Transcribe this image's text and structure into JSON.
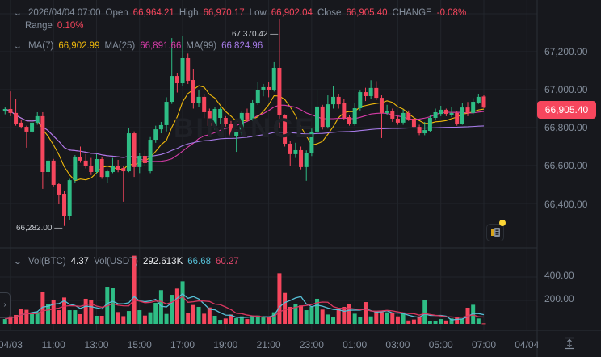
{
  "header": {
    "datetime": "2026/04/04 07:00",
    "open_label": "Open",
    "open": "66,964.21",
    "high_label": "High",
    "high": "66,970.17",
    "low_label": "Low",
    "low": "66,902.04",
    "close_label": "Close",
    "close": "66,905.40",
    "change_label": "CHANGE",
    "change": "-0.08%",
    "range_label": "Range",
    "range": "0.10%"
  },
  "ma_legend": {
    "ma7_label": "MA(7)",
    "ma7": "66,902.99",
    "ma25_label": "MA(25)",
    "ma25": "66,891.66",
    "ma99_label": "MA(99)",
    "ma99": "66,824.96"
  },
  "volume_legend": {
    "vol_btc_label": "Vol(BTC)",
    "vol_btc": "4.37",
    "vol_usdt_label": "Vol(USDT)",
    "vol_usdt": "292.613K",
    "vol_ma1": "66.68",
    "vol_ma2": "60.27"
  },
  "markers": {
    "high": "67,370.42",
    "low": "66,282.00"
  },
  "current_price": "66,905.40",
  "watermark": "BINANCE",
  "colors": {
    "up": "#2ebd85",
    "down": "#f6465d",
    "ma7": "#f0b90b",
    "ma25": "#d63ca8",
    "ma99": "#a77be8",
    "vol_ma1": "#56bfd6",
    "vol_ma2": "#d9365f",
    "background": "#17181d"
  },
  "icons": {
    "collapse": "chevron-down-icon",
    "expand": "chevron-right-icon",
    "news": "news-icon",
    "autoscale": "autoscale-icon"
  },
  "chart_data": {
    "type": "candlestick",
    "price_ticks": [
      "67,200.00",
      "67,000.00",
      "66,800.00",
      "66,600.00",
      "66,400.00"
    ],
    "volume_ticks": [
      "400.00",
      "200.00"
    ],
    "x_ticks": [
      "04/03",
      "11:00",
      "13:00",
      "15:00",
      "17:00",
      "19:00",
      "21:00",
      "23:00",
      "01:00",
      "03:00",
      "05:00",
      "07:00",
      "04/04"
    ],
    "ylim": [
      66200,
      67400
    ],
    "volume_ylim": [
      0,
      600
    ],
    "grid": true,
    "columns": [
      "time",
      "open",
      "high",
      "low",
      "close",
      "volume"
    ],
    "candles": [
      [
        "08:45",
        66885,
        66910,
        66870,
        66898,
        41
      ],
      [
        "09:00",
        66898,
        66991,
        66860,
        66877,
        64
      ],
      [
        "09:15",
        66877,
        66953,
        66810,
        66821,
        76
      ],
      [
        "09:30",
        66826,
        66840,
        66795,
        66804,
        131
      ],
      [
        "09:45",
        66804,
        66810,
        66694,
        66779,
        120
      ],
      [
        "10:00",
        66779,
        66835,
        66770,
        66826,
        92
      ],
      [
        "10:15",
        66826,
        66881,
        66815,
        66860,
        101
      ],
      [
        "10:30",
        66860,
        66881,
        66477,
        66566,
        271
      ],
      [
        "10:45",
        66566,
        66640,
        66540,
        66626,
        168
      ],
      [
        "11:00",
        66626,
        66635,
        66490,
        66498,
        207
      ],
      [
        "11:15",
        66502,
        66510,
        66400,
        66447,
        117
      ],
      [
        "11:30",
        66451,
        66465,
        66282,
        66336,
        225
      ],
      [
        "11:45",
        66336,
        66530,
        66315,
        66523,
        117
      ],
      [
        "12:00",
        66523,
        66655,
        66510,
        66647,
        117
      ],
      [
        "12:15",
        66647,
        66700,
        66615,
        66626,
        83
      ],
      [
        "12:30",
        66626,
        66660,
        66585,
        66596,
        214
      ],
      [
        "12:45",
        66600,
        66640,
        66550,
        66566,
        202
      ],
      [
        "13:00",
        66566,
        66660,
        66555,
        66634,
        69
      ],
      [
        "13:15",
        66634,
        66645,
        66530,
        66540,
        69
      ],
      [
        "13:30",
        66540,
        66580,
        66510,
        66570,
        317
      ],
      [
        "13:45",
        66566,
        66640,
        66560,
        66596,
        306
      ],
      [
        "14:00",
        66596,
        66630,
        66565,
        66575,
        101
      ],
      [
        "14:15",
        66587,
        66600,
        66409,
        66570,
        66
      ],
      [
        "14:30",
        66570,
        66800,
        66565,
        66770,
        110
      ],
      [
        "14:45",
        66770,
        66780,
        66540,
        66592,
        582
      ],
      [
        "15:00",
        66592,
        66665,
        66560,
        66651,
        117
      ],
      [
        "15:15",
        66651,
        66680,
        66600,
        66613,
        71
      ],
      [
        "15:30",
        66570,
        66750,
        66560,
        66736,
        99
      ],
      [
        "15:45",
        66736,
        66810,
        66720,
        66791,
        179
      ],
      [
        "16:00",
        66791,
        66830,
        66770,
        66813,
        288
      ],
      [
        "16:15",
        66813,
        66960,
        66780,
        66936,
        85
      ],
      [
        "16:30",
        66936,
        67272,
        66925,
        67072,
        248
      ],
      [
        "16:45",
        67072,
        67085,
        66985,
        67034,
        301
      ],
      [
        "17:00",
        67034,
        67281,
        67020,
        67166,
        363
      ],
      [
        "17:15",
        67166,
        67190,
        67030,
        67047,
        92
      ],
      [
        "17:30",
        67051,
        67110,
        66900,
        66928,
        161
      ],
      [
        "17:45",
        66928,
        67000,
        66910,
        66962,
        145
      ],
      [
        "18:00",
        66962,
        66975,
        66850,
        66881,
        87
      ],
      [
        "18:15",
        66885,
        66900,
        66780,
        66809,
        140
      ],
      [
        "18:30",
        66809,
        66910,
        66790,
        66898,
        69
      ],
      [
        "18:45",
        66851,
        66905,
        66820,
        66898,
        34
      ],
      [
        "19:00",
        66851,
        66860,
        66805,
        66817,
        46
      ],
      [
        "19:15",
        66821,
        66835,
        66750,
        66757,
        80
      ],
      [
        "19:30",
        66757,
        66790,
        66672,
        66779,
        48
      ],
      [
        "19:45",
        66774,
        66885,
        66760,
        66877,
        64
      ],
      [
        "20:00",
        66877,
        66900,
        66830,
        66843,
        41
      ],
      [
        "20:15",
        66843,
        66945,
        66835,
        66932,
        71
      ],
      [
        "20:30",
        66932,
        67040,
        66920,
        66996,
        71
      ],
      [
        "20:45",
        66996,
        67030,
        66965,
        67013,
        58
      ],
      [
        "21:00",
        67013,
        67040,
        66960,
        67000,
        58
      ],
      [
        "21:15",
        67000,
        67145,
        66990,
        67115,
        99
      ],
      [
        "21:30",
        67115,
        67370.42,
        66800,
        66864,
        432
      ],
      [
        "21:45",
        66864,
        66870,
        66700,
        66715,
        264
      ],
      [
        "22:00",
        66715,
        66730,
        66600,
        66660,
        145
      ],
      [
        "22:15",
        66660,
        66720,
        66640,
        66681,
        168
      ],
      [
        "22:30",
        66681,
        66700,
        66580,
        66592,
        157
      ],
      [
        "22:45",
        66592,
        66680,
        66520,
        66664,
        117
      ],
      [
        "23:00",
        66664,
        66795,
        66650,
        66779,
        145
      ],
      [
        "23:15",
        66779,
        66996,
        66770,
        66911,
        214
      ],
      [
        "23:30",
        66911,
        66920,
        66790,
        66804,
        122
      ],
      [
        "23:45",
        66804,
        66970,
        66795,
        66923,
        80
      ],
      [
        "00:00",
        66923,
        67020,
        66900,
        66962,
        58
      ],
      [
        "00:15",
        66962,
        66975,
        66900,
        66923,
        131
      ],
      [
        "00:30",
        66928,
        66950,
        66840,
        66851,
        145
      ],
      [
        "00:45",
        66855,
        66865,
        66810,
        66821,
        168
      ],
      [
        "01:00",
        66821,
        66930,
        66810,
        66902,
        87
      ],
      [
        "01:15",
        66902,
        66995,
        66890,
        66987,
        58
      ],
      [
        "01:30",
        66987,
        67010,
        66940,
        66966,
        186
      ],
      [
        "01:45",
        66966,
        67050,
        66950,
        67009,
        64
      ],
      [
        "02:00",
        67009,
        67045,
        66945,
        66957,
        110
      ],
      [
        "02:15",
        66957,
        66970,
        66745,
        66877,
        101
      ],
      [
        "02:30",
        66877,
        66920,
        66865,
        66889,
        99
      ],
      [
        "02:45",
        66889,
        66900,
        66830,
        66847,
        92
      ],
      [
        "03:00",
        66847,
        66860,
        66815,
        66826,
        64
      ],
      [
        "03:15",
        66826,
        66895,
        66815,
        66877,
        87
      ],
      [
        "03:30",
        66877,
        66890,
        66835,
        66843,
        29
      ],
      [
        "03:45",
        66847,
        66860,
        66795,
        66804,
        37
      ],
      [
        "04:00",
        66804,
        66815,
        66760,
        66770,
        64
      ],
      [
        "04:15",
        66770,
        66830,
        66760,
        66787,
        207
      ],
      [
        "04:30",
        66783,
        66865,
        66775,
        66851,
        25
      ],
      [
        "04:45",
        66851,
        66900,
        66840,
        66881,
        25
      ],
      [
        "05:00",
        66872,
        66915,
        66860,
        66894,
        41
      ],
      [
        "05:15",
        66894,
        66900,
        66860,
        66872,
        29
      ],
      [
        "05:30",
        66864,
        66910,
        66855,
        66877,
        46
      ],
      [
        "05:45",
        66877,
        66885,
        66810,
        66821,
        53
      ],
      [
        "06:00",
        66821,
        66930,
        66815,
        66906,
        41
      ],
      [
        "06:15",
        66906,
        66935,
        66860,
        66877,
        138
      ],
      [
        "06:30",
        66877,
        66955,
        66870,
        66936,
        163
      ],
      [
        "06:45",
        66932,
        66975,
        66925,
        66962,
        46
      ],
      [
        "07:00",
        66964.21,
        66970.17,
        66902.04,
        66905.4,
        4.37
      ]
    ]
  }
}
